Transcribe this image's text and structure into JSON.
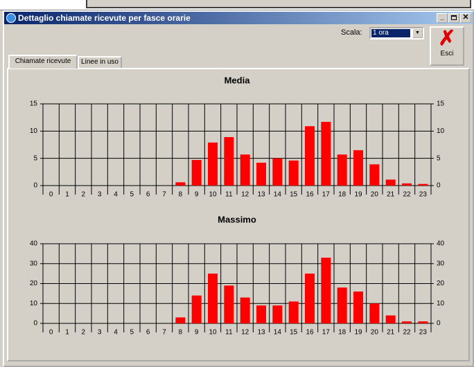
{
  "window": {
    "title": "Dettaglio chiamate ricevute per fasce orarie"
  },
  "toolbar": {
    "scale_label": "Scala:",
    "scale_value": "1 ora",
    "exit_button": "Esci"
  },
  "tabs": [
    "Chiamate ricevute",
    "Linee in uso"
  ],
  "chart_data": [
    {
      "type": "bar",
      "title": "Media",
      "categories": [
        "0",
        "1",
        "2",
        "3",
        "4",
        "5",
        "6",
        "7",
        "8",
        "9",
        "10",
        "11",
        "12",
        "13",
        "14",
        "15",
        "16",
        "17",
        "18",
        "19",
        "20",
        "21",
        "22",
        "23"
      ],
      "values": [
        0,
        0,
        0,
        0,
        0,
        0,
        0,
        0,
        0.6,
        4.7,
        7.9,
        8.9,
        5.7,
        4.2,
        5,
        4.6,
        10.9,
        11.7,
        5.7,
        6.5,
        3.9,
        1.1,
        0.4,
        0.3
      ],
      "color": "#ff0000",
      "ylim": [
        0,
        15
      ],
      "yticks": [
        0,
        5,
        10,
        15
      ],
      "grid": true
    },
    {
      "type": "bar",
      "title": "Massimo",
      "categories": [
        "0",
        "1",
        "2",
        "3",
        "4",
        "5",
        "6",
        "7",
        "8",
        "9",
        "10",
        "11",
        "12",
        "13",
        "14",
        "15",
        "16",
        "17",
        "18",
        "19",
        "20",
        "21",
        "22",
        "23"
      ],
      "values": [
        0,
        0,
        0,
        0,
        0,
        0,
        0,
        0,
        3,
        14,
        25,
        19,
        13,
        9,
        9,
        11,
        25,
        33,
        18,
        16,
        10,
        4,
        1,
        1
      ],
      "color": "#ff0000",
      "ylim": [
        0,
        40
      ],
      "yticks": [
        0,
        10,
        20,
        30,
        40
      ],
      "grid": true
    }
  ]
}
